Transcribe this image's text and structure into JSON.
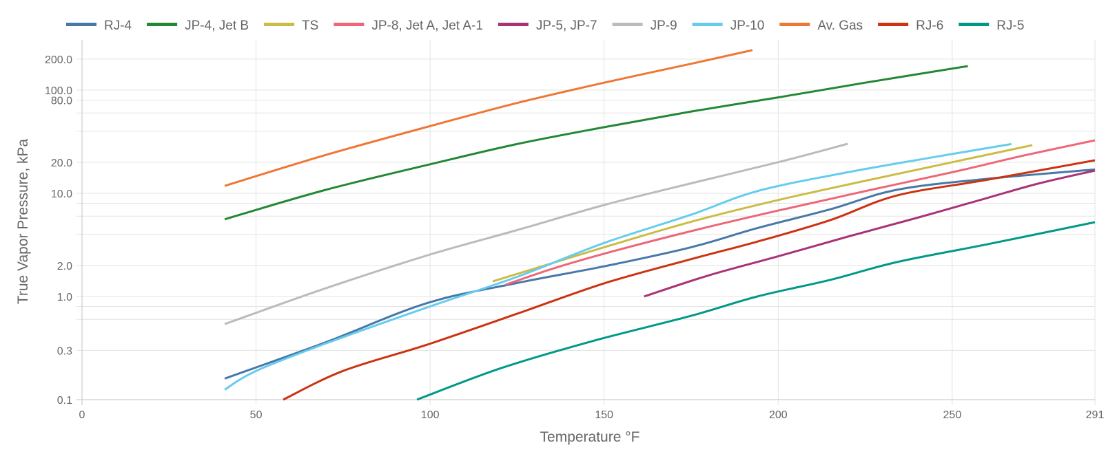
{
  "chart_data": {
    "type": "line",
    "title": "",
    "xlabel": "Temperature °F",
    "ylabel": "True Vapor Pressure, kPa",
    "xlim": [
      0,
      291
    ],
    "ylim": [
      0.1,
      300
    ],
    "yscale": "log",
    "grid": true,
    "legend_position": "top",
    "x_ticks": [
      0,
      50,
      100,
      150,
      200,
      250,
      291
    ],
    "x_tick_labels": [
      "0",
      "50",
      "100",
      "150",
      "200",
      "250",
      "291"
    ],
    "y_gridlines": [
      0.1,
      0.3,
      0.6,
      0.8,
      1.0,
      2.0,
      4.0,
      6.0,
      8.0,
      10.0,
      20.0,
      40.0,
      60.0,
      80.0,
      100.0,
      200.0
    ],
    "y_ticks": [
      0.1,
      0.3,
      1.0,
      2.0,
      10.0,
      20.0,
      80.0,
      100.0,
      200.0
    ],
    "y_tick_labels": [
      "0.1",
      "0.3",
      "1.0",
      "2.0",
      "10.0",
      "20.0",
      "80.0",
      "100.0",
      "200.0"
    ],
    "series": [
      {
        "name": "RJ-4",
        "color": "#4878a8",
        "x": [
          41,
          70,
          99,
          125,
          150,
          175,
          194,
          215,
          234,
          260,
          291
        ],
        "y": [
          0.16,
          0.36,
          0.86,
          1.35,
          1.96,
          3.0,
          4.6,
          7.0,
          10.8,
          13.8,
          17.0
        ]
      },
      {
        "name": "JP-4, Jet B",
        "color": "#228833",
        "x": [
          41,
          70,
          100,
          125,
          150,
          175,
          200,
          225,
          254.5
        ],
        "y": [
          5.6,
          10.8,
          19.1,
          30.0,
          43.7,
          62.0,
          85.0,
          118.0,
          171.0
        ]
      },
      {
        "name": "TS",
        "color": "#ccbb44",
        "x": [
          118,
          135,
          150,
          175,
          200,
          225,
          250,
          273
        ],
        "y": [
          1.4,
          2.1,
          3.0,
          5.3,
          8.6,
          13.2,
          20.0,
          29.3
        ]
      },
      {
        "name": "JP-8, Jet A, Jet A-1",
        "color": "#ee6677",
        "x": [
          121.7,
          135,
          150,
          175,
          200,
          225,
          250,
          270,
          291
        ],
        "y": [
          1.3,
          1.85,
          2.6,
          4.3,
          6.8,
          10.5,
          16.0,
          23.0,
          32.6
        ]
      },
      {
        "name": "JP-5, JP-7",
        "color": "#aa3377",
        "x": [
          161.5,
          180,
          200,
          220,
          240,
          260,
          275,
          291
        ],
        "y": [
          1.0,
          1.6,
          2.45,
          3.8,
          5.8,
          9.0,
          12.5,
          16.6
        ]
      },
      {
        "name": "JP-9",
        "color": "#bbbbbb",
        "x": [
          41,
          70,
          100,
          125,
          150,
          175,
          200,
          220
        ],
        "y": [
          0.54,
          1.2,
          2.55,
          4.4,
          7.7,
          12.5,
          20.0,
          30.2
        ]
      },
      {
        "name": "JP-10",
        "color": "#66ccee",
        "x": [
          41,
          50,
          70,
          99,
          125,
          150,
          175,
          194,
          220,
          245,
          267
        ],
        "y": [
          0.125,
          0.19,
          0.35,
          0.78,
          1.55,
          3.3,
          6.2,
          10.5,
          16.0,
          22.5,
          30.0
        ]
      },
      {
        "name": "Av. Gas",
        "color": "#ee7733",
        "x": [
          41,
          70,
          100,
          125,
          150,
          175,
          192.6
        ],
        "y": [
          11.8,
          23.5,
          44.8,
          75.0,
          118.0,
          180.0,
          244.0
        ]
      },
      {
        "name": "RJ-6",
        "color": "#cc3311",
        "x": [
          57.8,
          75,
          99,
          125,
          150,
          175,
          194,
          215,
          234,
          260,
          291
        ],
        "y": [
          0.1,
          0.19,
          0.34,
          0.68,
          1.34,
          2.3,
          3.4,
          5.5,
          9.5,
          13.5,
          20.9
        ]
      },
      {
        "name": "RJ-5",
        "color": "#009988",
        "x": [
          96.2,
          120,
          146.7,
          175,
          194,
          215,
          234,
          260,
          291
        ],
        "y": [
          0.1,
          0.2,
          0.37,
          0.65,
          1.0,
          1.45,
          2.15,
          3.2,
          5.25
        ]
      }
    ]
  }
}
